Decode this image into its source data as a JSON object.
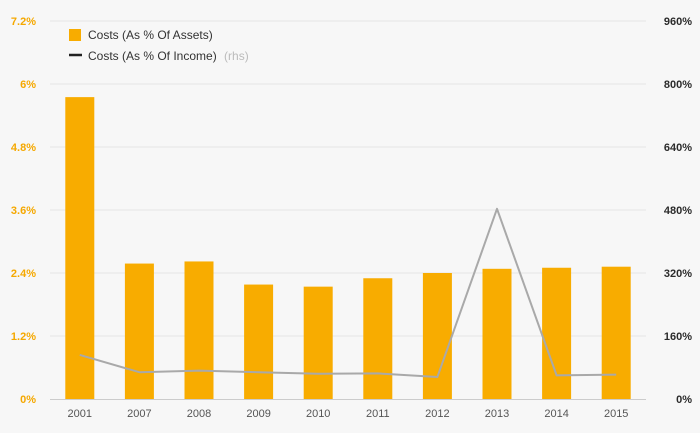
{
  "chart_data": {
    "type": "bar",
    "categories": [
      "2001",
      "2007",
      "2008",
      "2009",
      "2010",
      "2011",
      "2012",
      "2013",
      "2014",
      "2015"
    ],
    "series": [
      {
        "name": "Costs (As % Of Assets)",
        "type": "bar",
        "axis": "left",
        "values": [
          5.75,
          2.58,
          2.62,
          2.18,
          2.14,
          2.3,
          2.4,
          2.48,
          2.5,
          2.52
        ]
      },
      {
        "name": "Costs (As % Of Income)",
        "legend_suffix": "(rhs)",
        "type": "line",
        "axis": "right",
        "values": [
          112,
          68,
          72,
          68,
          64,
          65,
          56,
          483,
          60,
          62
        ]
      }
    ],
    "y_left": {
      "ylim": [
        0,
        7.2
      ],
      "ticks": [
        "0%",
        "1.2%",
        "2.4%",
        "3.6%",
        "4.8%",
        "6%",
        "7.2%"
      ]
    },
    "y_right": {
      "ylim": [
        0,
        960
      ],
      "ticks": [
        "0%",
        "160%",
        "320%",
        "480%",
        "640%",
        "800%",
        "960%"
      ]
    },
    "grid": true,
    "legend_position": "top-left",
    "colors": {
      "bar": "#f8ac00",
      "line": "#a9a9a9",
      "legend_line": "#222222",
      "left_axis": "#f5a800",
      "right_axis": "#2b2b2b",
      "grid": "#e6e6e6"
    }
  }
}
